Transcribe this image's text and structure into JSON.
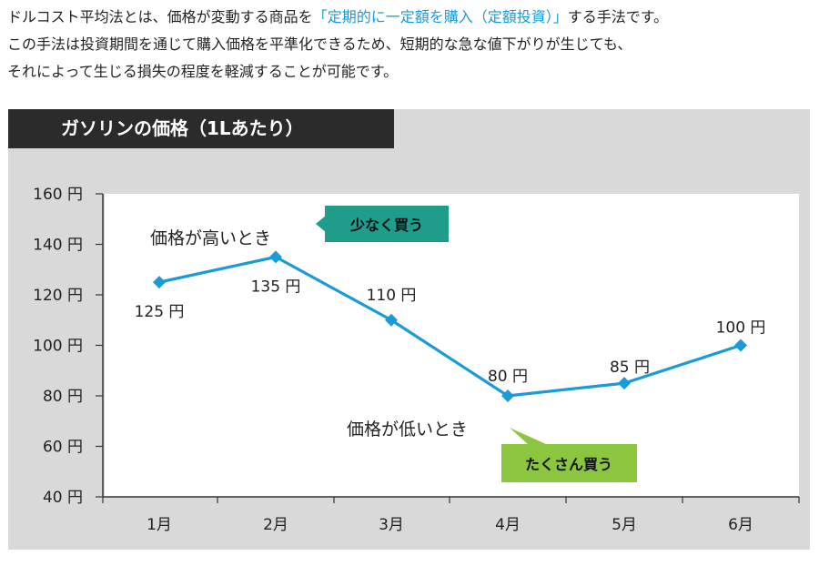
{
  "intro": {
    "line1_a": "ドルコスト平均法とは、価格が変動する商品を",
    "line1_highlight": "「定期的に一定額を購入（定額投資）」",
    "line1_b": "する手法です。",
    "line2": "この手法は投資期間を通じて購入価格を平準化できるため、短期的な急な値下がりが生じても、",
    "line3": "それによって生じる損失の程度を軽減することが可能です。"
  },
  "colors": {
    "line": "#1a9bd7",
    "highlight": "#1a9bd7",
    "panel": "#d9d9d9",
    "title_bg": "#2b2b2b",
    "teal_callout": "#1f9d8a",
    "green_callout": "#8cc63f"
  },
  "chart_data": {
    "type": "line",
    "title": "ガソリンの価格（1Lあたり）",
    "categories": [
      "1月",
      "2月",
      "3月",
      "4月",
      "5月",
      "6月"
    ],
    "values": [
      125,
      135,
      110,
      80,
      85,
      100
    ],
    "data_labels": [
      "125 円",
      "135 円",
      "110 円",
      "80 円",
      "85 円",
      "100 円"
    ],
    "yticks": [
      40,
      60,
      80,
      100,
      120,
      140,
      160
    ],
    "ytick_labels": [
      "40 円",
      "60 円",
      "80 円",
      "100 円",
      "120 円",
      "140 円",
      "160 円"
    ],
    "ylim": [
      40,
      160
    ],
    "xlabel": "",
    "ylabel": "",
    "grid": false,
    "annotations": {
      "high_text": "価格が高いとき",
      "high_callout": "少なく買う",
      "low_text": "価格が低いとき",
      "low_callout": "たくさん買う"
    }
  }
}
